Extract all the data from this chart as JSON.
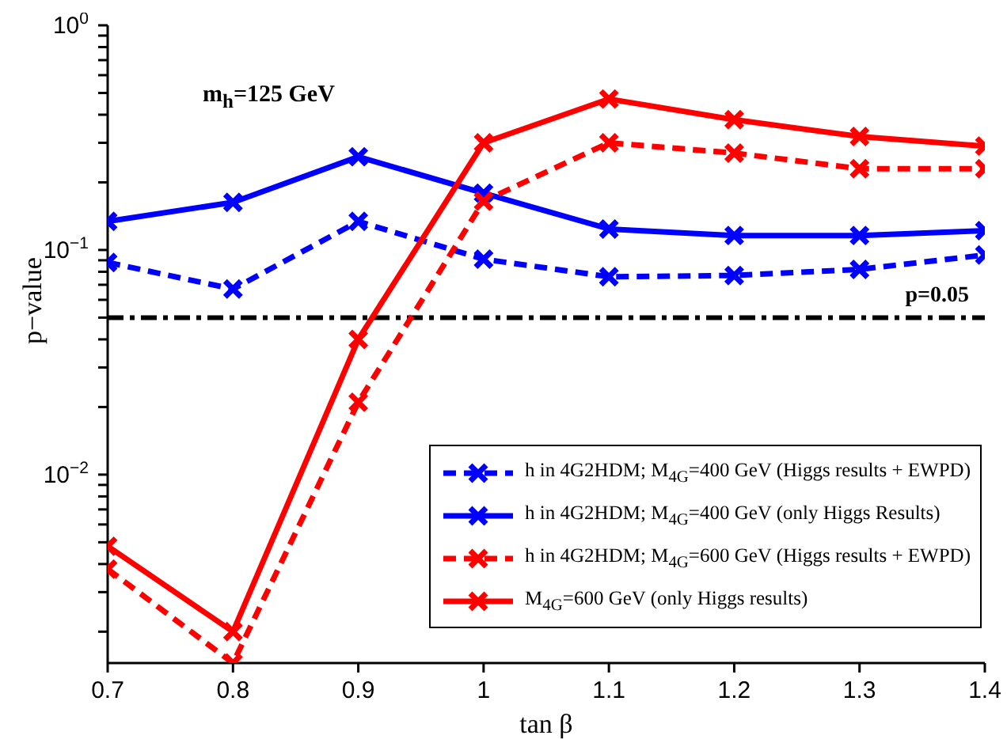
{
  "chart_data": {
    "type": "line",
    "xlabel": "tan β",
    "ylabel": "p−value",
    "x": [
      0.7,
      0.8,
      0.9,
      1.0,
      1.1,
      1.2,
      1.3,
      1.4
    ],
    "series": [
      {
        "name": "h in 4G2HDM; M$_{4G}$=400 GeV (Higgs results + EWPD)",
        "color": "#0000ff",
        "line_style": "dashed",
        "values": [
          0.088,
          0.067,
          0.134,
          0.091,
          0.076,
          0.077,
          0.082,
          0.095
        ]
      },
      {
        "name": "h in 4G2HDM; M$_{4G}$=400 GeV (only Higgs Results)",
        "color": "#0000ff",
        "line_style": "solid",
        "values": [
          0.134,
          0.163,
          0.26,
          0.179,
          0.124,
          0.116,
          0.116,
          0.122
        ]
      },
      {
        "name": "h in 4G2HDM; M$_{4G}$=600 GeV (Higgs results + EWPD)",
        "color": "#ff0000",
        "line_style": "dashed",
        "values": [
          0.0038,
          0.00145,
          0.021,
          0.165,
          0.3,
          0.27,
          0.23,
          0.23
        ]
      },
      {
        "name": "M$_{4G}$=600 GeV (only Higgs results)",
        "color": "#ff0000",
        "line_style": "solid",
        "values": [
          0.0048,
          0.002,
          0.04,
          0.3,
          0.47,
          0.38,
          0.32,
          0.29
        ]
      }
    ],
    "xlim": [
      0.7,
      1.4
    ],
    "xticks": [
      0.7,
      0.8,
      0.9,
      1,
      1.1,
      1.2,
      1.3,
      1.4
    ],
    "log": true,
    "ylim": [
      0.00145,
      1
    ],
    "yticks": [
      {
        "value": 0.002,
        "label": null
      },
      {
        "value": 0.003,
        "label": null
      },
      {
        "value": 0.004,
        "label": null
      },
      {
        "value": 0.005,
        "label": null
      },
      {
        "value": 0.006,
        "label": null
      },
      {
        "value": 0.007,
        "label": null
      },
      {
        "value": 0.008,
        "label": null
      },
      {
        "value": 0.009,
        "label": null
      },
      {
        "value": 0.01,
        "label": "10$^{−2}$"
      },
      {
        "value": 0.02,
        "label": null
      },
      {
        "value": 0.03,
        "label": null
      },
      {
        "value": 0.04,
        "label": null
      },
      {
        "value": 0.05,
        "label": null
      },
      {
        "value": 0.06,
        "label": null
      },
      {
        "value": 0.07,
        "label": null
      },
      {
        "value": 0.08,
        "label": null
      },
      {
        "value": 0.09,
        "label": null
      },
      {
        "value": 0.1,
        "label": "10$^{−1}$"
      },
      {
        "value": 0.2,
        "label": null
      },
      {
        "value": 0.3,
        "label": null
      },
      {
        "value": 0.4,
        "label": null
      },
      {
        "value": 0.5,
        "label": null
      },
      {
        "value": 0.6,
        "label": null
      },
      {
        "value": 0.7,
        "label": null
      },
      {
        "value": 0.8,
        "label": null
      },
      {
        "value": 0.9,
        "label": null
      },
      {
        "value": 1,
        "label": "10$^{0}$"
      }
    ],
    "ref_lines": [
      {
        "axis": "y",
        "value": 0.05,
        "label": "p=0.05",
        "color": "#000000",
        "line_style": "dashed"
      }
    ],
    "annotations": [
      "m$_{h}$=125 GeV"
    ],
    "marker": "cross",
    "legend": "bottom right"
  }
}
